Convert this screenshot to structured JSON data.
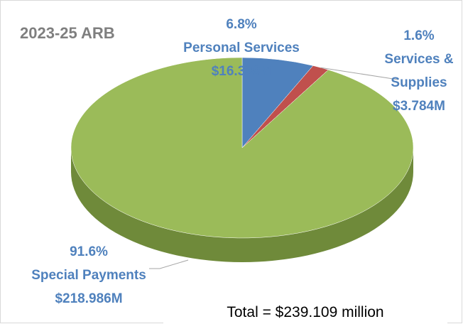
{
  "chart_data": {
    "type": "pie",
    "title": "2023-25 ARB",
    "categories": [
      "Personal Services",
      "Services & Supplies",
      "Special Payments"
    ],
    "values": [
      6.8,
      1.6,
      91.6
    ],
    "value_labels": [
      "6.8%",
      "1.6%",
      "91.6%"
    ],
    "amount_labels": [
      "$16.339M",
      "$3.784M",
      "$218.986M"
    ],
    "colors": [
      "#4f81bd",
      "#c0504d",
      "#9bbb59"
    ],
    "annotation": "Total = $239.109 million"
  }
}
